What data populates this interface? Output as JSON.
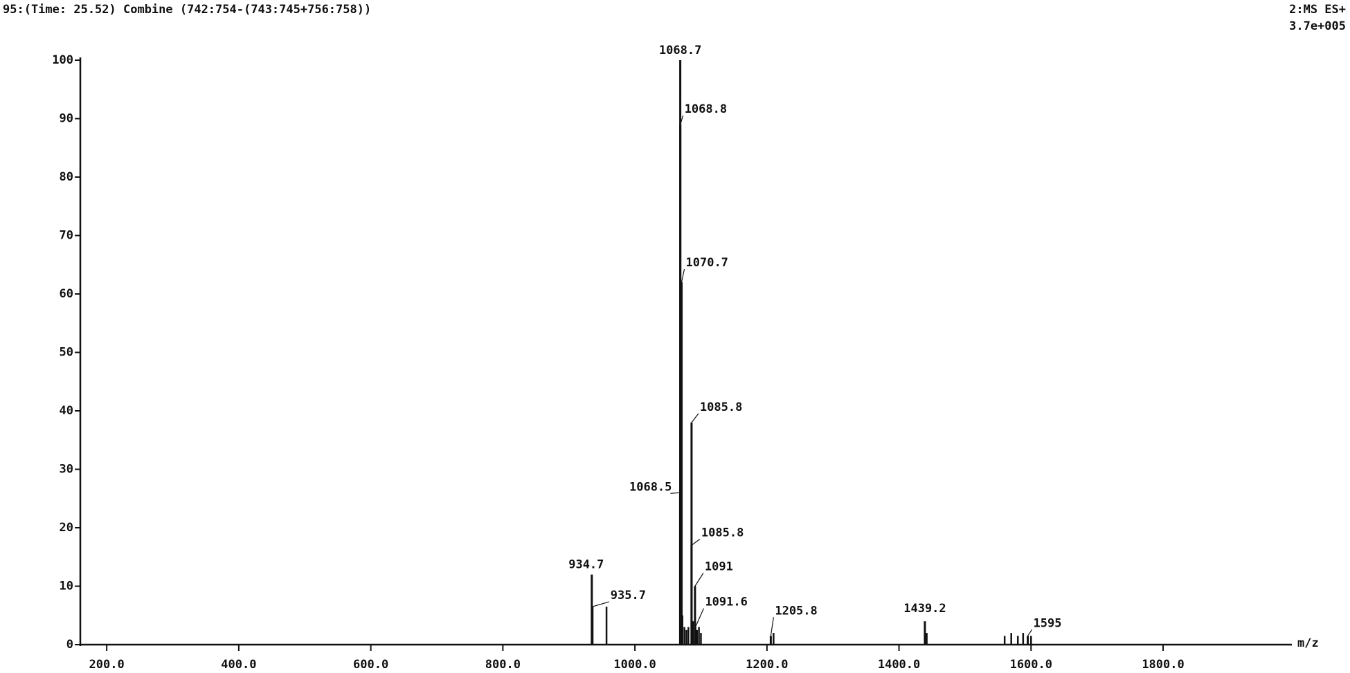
{
  "chart_data": {
    "type": "stick",
    "title": "95:(Time: 25.52) Combine (742:754-(743:745+756:758))",
    "scan_mode": "2:MS ES+",
    "intensity": "3.7e+005",
    "x_label": "m/z",
    "x": [
      934.7,
      935.7,
      1068.7,
      1068.8,
      1070.7,
      1068.5,
      1085.8,
      1085.8,
      1091.0,
      1091.6,
      1205.8,
      1439.2,
      1595
    ],
    "values": [
      12,
      6.5,
      100,
      89,
      62,
      26,
      38,
      17,
      10,
      3,
      1.5,
      4,
      1.5
    ],
    "minor_x": [
      957,
      1072,
      1075,
      1078,
      1081,
      1088,
      1094,
      1097,
      1100,
      1210,
      1442,
      1560,
      1570,
      1580,
      1588,
      1600
    ],
    "minor_values": [
      6.5,
      5,
      3,
      2.5,
      3,
      4,
      2.5,
      3,
      2,
      2,
      2,
      1.5,
      2,
      1.5,
      2,
      1.5
    ],
    "color": "#111111",
    "xlim": [
      160,
      1995
    ],
    "ylim": [
      0,
      100
    ],
    "xticks": [
      {
        "value": 200,
        "label": "200.0"
      },
      {
        "value": 400,
        "label": "400.0"
      },
      {
        "value": 600,
        "label": "600.0"
      },
      {
        "value": 800,
        "label": "800.0"
      },
      {
        "value": 1000,
        "label": "1000.0"
      },
      {
        "value": 1200,
        "label": "1200.0"
      },
      {
        "value": 1400,
        "label": "1400.0"
      },
      {
        "value": 1600,
        "label": "1600.0"
      },
      {
        "value": 1800,
        "label": "1800.0"
      }
    ],
    "yticks": [
      0,
      10,
      20,
      30,
      40,
      50,
      60,
      70,
      80,
      90,
      100
    ]
  }
}
